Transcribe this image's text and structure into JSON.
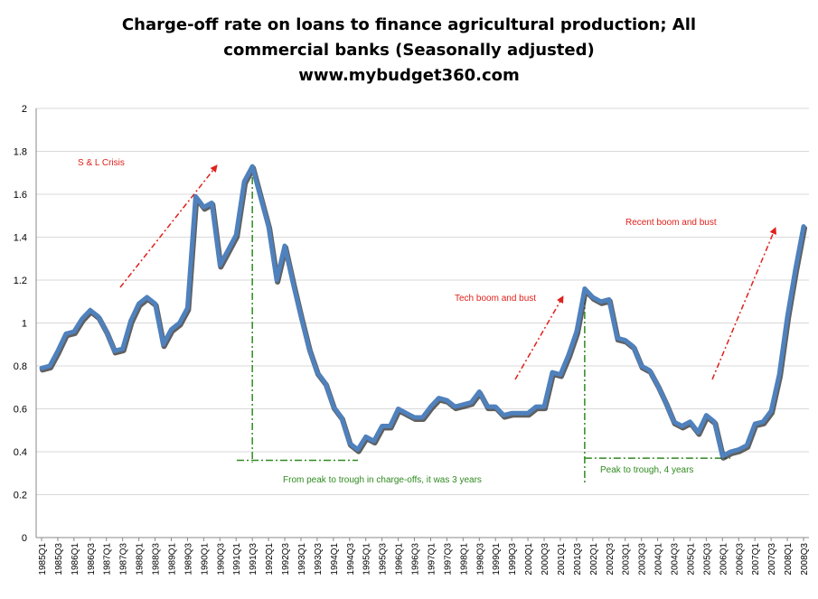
{
  "title_lines": [
    "Charge-off rate on loans to finance agricultural production; All",
    "commercial banks (Seasonally adjusted)",
    "www.mybudget360.com"
  ],
  "colors": {
    "series": "#4f81bd",
    "series_shadow": "#2b2b2b",
    "arrow_red": "#e0201a",
    "guide_green": "#2e8b1f",
    "grid": "#d9d9d9"
  },
  "chart_data": {
    "type": "line",
    "title": "Charge-off rate on loans to finance agricultural production; All commercial banks (Seasonally adjusted)",
    "ylim": [
      0,
      2
    ],
    "yticks": [
      "0",
      "0.2",
      "0.4",
      "0.6",
      "0.8",
      "1",
      "1.2",
      "1.4",
      "1.6",
      "1.8",
      "2"
    ],
    "grid": "horizontal",
    "legend": "none",
    "x_tick_labels": [
      "1985Q1",
      "1985Q3",
      "1986Q1",
      "1986Q3",
      "1987Q1",
      "1987Q3",
      "1988Q1",
      "1988Q3",
      "1989Q1",
      "1989Q3",
      "1990Q1",
      "1990Q3",
      "1991Q1",
      "1991Q3",
      "1992Q1",
      "1992Q3",
      "1993Q1",
      "1993Q3",
      "1994Q1",
      "1994Q3",
      "1995Q1",
      "1995Q3",
      "1996Q1",
      "1996Q3",
      "1997Q1",
      "1997Q3",
      "1998Q1",
      "1998Q3",
      "1999Q1",
      "1999Q3",
      "2000Q1",
      "2000Q3",
      "2001Q1",
      "2001Q3",
      "2002Q1",
      "2002Q3",
      "2003Q1",
      "2003Q3",
      "2004Q1",
      "2004Q3",
      "2005Q1",
      "2005Q3",
      "2006Q1",
      "2006Q3",
      "2007Q1",
      "2007Q3",
      "2008Q1",
      "2008Q3"
    ],
    "values": [
      0.79,
      0.8,
      0.87,
      0.95,
      0.96,
      1.02,
      1.06,
      1.03,
      0.96,
      0.87,
      0.88,
      1.01,
      1.09,
      1.12,
      1.09,
      0.9,
      0.97,
      1.0,
      1.07,
      1.59,
      1.54,
      1.56,
      1.27,
      1.34,
      1.41,
      1.66,
      1.73,
      1.59,
      1.45,
      1.2,
      1.36,
      1.19,
      1.03,
      0.88,
      0.77,
      0.72,
      0.61,
      0.56,
      0.44,
      0.41,
      0.47,
      0.45,
      0.52,
      0.52,
      0.6,
      0.58,
      0.56,
      0.56,
      0.61,
      0.65,
      0.64,
      0.61,
      0.62,
      0.63,
      0.68,
      0.61,
      0.61,
      0.57,
      0.58,
      0.58,
      0.58,
      0.61,
      0.61,
      0.77,
      0.76,
      0.85,
      0.96,
      1.16,
      1.12,
      1.1,
      1.11,
      0.93,
      0.92,
      0.89,
      0.8,
      0.78,
      0.71,
      0.63,
      0.54,
      0.52,
      0.54,
      0.49,
      0.57,
      0.54,
      0.38,
      0.4,
      0.41,
      0.43,
      0.53,
      0.54,
      0.59,
      0.76,
      1.03,
      1.25,
      1.45
    ],
    "annotations": [
      {
        "text": "S & L Crisis",
        "color": "red"
      },
      {
        "text": "Tech boom and bust",
        "color": "red"
      },
      {
        "text": "Recent boom and bust",
        "color": "red"
      },
      {
        "text": "From peak to trough in charge-offs, it was 3 years",
        "color": "green"
      },
      {
        "text": "Peak to trough, 4 years",
        "color": "green"
      }
    ]
  }
}
